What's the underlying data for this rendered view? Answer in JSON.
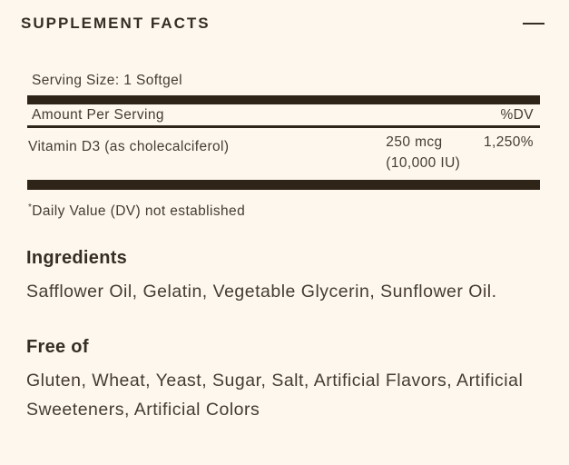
{
  "header": {
    "title": "SUPPLEMENT FACTS",
    "collapse_icon": "minus"
  },
  "facts_table": {
    "serving_size": "Serving Size: 1 Softgel",
    "header_row": {
      "amount_label": "Amount Per Serving",
      "dv_label": "%DV"
    },
    "rows": [
      {
        "name": "Vitamin D3 (as cholecalciferol)",
        "amount": "250 mcg",
        "amount_alt": "(10,000 IU)",
        "dv": "1,250%"
      }
    ],
    "footnote_symbol": "*",
    "footnote_text": "Daily Value (DV) not established"
  },
  "sections": {
    "ingredients": {
      "heading": "Ingredients",
      "body": "Safflower Oil, Gelatin, Vegetable Glycerin, Sunflower Oil."
    },
    "free_of": {
      "heading": "Free of",
      "body": "Gluten, Wheat, Yeast, Sugar, Salt, Artificial Flavors, Artificial Sweeteners, Artificial Colors"
    }
  },
  "colors": {
    "background": "#FDF7ED",
    "bar": "#2E2418",
    "text": "#443C32",
    "heading": "#352E26"
  }
}
